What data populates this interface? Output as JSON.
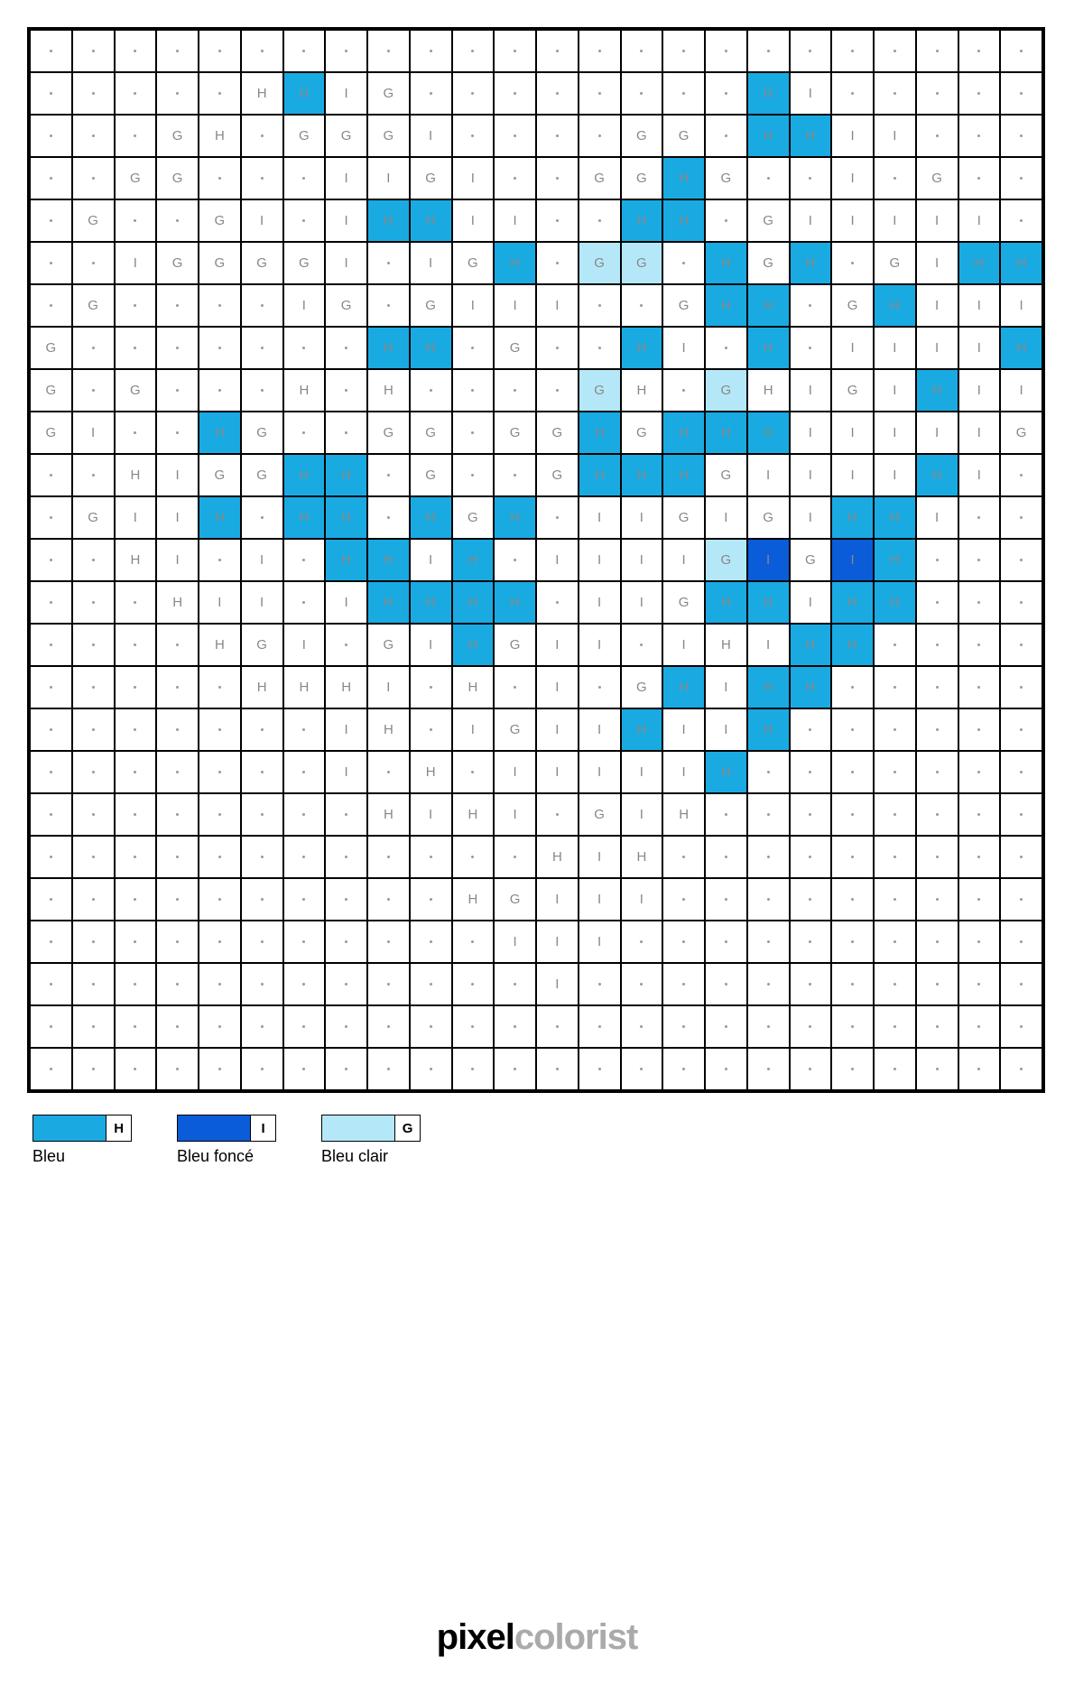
{
  "grid": {
    "cols": 24,
    "rows": 25,
    "colors": {
      "H": "#1aaae2",
      "I": "#0b5cd8",
      "G": "#b4e8f9",
      "default": "#ffffff"
    },
    "text_color": "#8b8b8b",
    "filled": {
      "1": [
        6,
        17
      ],
      "2": [
        17,
        18
      ],
      "3": [
        15
      ],
      "4": [
        8,
        9,
        14,
        15
      ],
      "5": [
        11,
        13,
        14,
        16,
        18,
        22,
        23
      ],
      "6": [
        16,
        17,
        20
      ],
      "7": [
        8,
        9,
        14,
        17,
        23
      ],
      "8": [
        13,
        16,
        21
      ],
      "9": [
        4,
        13,
        15,
        16,
        17
      ],
      "10": [
        6,
        7,
        13,
        14,
        15,
        21
      ],
      "11": [
        4,
        6,
        7,
        9,
        11,
        19,
        20
      ],
      "12": [
        7,
        8,
        10,
        16,
        17,
        19,
        20
      ],
      "13": [
        8,
        9,
        10,
        11,
        16,
        17,
        19,
        20
      ],
      "14": [
        10,
        18,
        19
      ],
      "15": [
        15,
        17,
        18
      ],
      "16": [
        14,
        17
      ],
      "17": [
        16
      ]
    },
    "cells": [
      [
        ".",
        ".",
        ".",
        ".",
        ".",
        ".",
        ".",
        ".",
        ".",
        ".",
        ".",
        ".",
        ".",
        ".",
        ".",
        ".",
        ".",
        ".",
        ".",
        ".",
        ".",
        ".",
        ".",
        "."
      ],
      [
        ".",
        ".",
        ".",
        ".",
        ".",
        "H",
        "H",
        "I",
        "G",
        ".",
        ".",
        ".",
        ".",
        ".",
        ".",
        ".",
        ".",
        "H",
        "I",
        ".",
        ".",
        ".",
        ".",
        "."
      ],
      [
        ".",
        ".",
        ".",
        "G",
        "H",
        ".",
        "G",
        "G",
        "G",
        "I",
        ".",
        ".",
        ".",
        ".",
        "G",
        "G",
        ".",
        "H",
        "H",
        "I",
        "I",
        ".",
        ".",
        "."
      ],
      [
        ".",
        ".",
        "G",
        "G",
        ".",
        ".",
        ".",
        "I",
        "I",
        "G",
        "I",
        ".",
        ".",
        "G",
        "G",
        "H",
        "G",
        ".",
        ".",
        "I",
        ".",
        "G",
        ".",
        "."
      ],
      [
        ".",
        "G",
        ".",
        ".",
        "G",
        "I",
        ".",
        "I",
        "H",
        "H",
        "I",
        "I",
        ".",
        ".",
        "H",
        "H",
        ".",
        "G",
        "I",
        "I",
        "I",
        "I",
        "I",
        "."
      ],
      [
        ".",
        ".",
        "I",
        "G",
        "G",
        "G",
        "G",
        "I",
        ".",
        "I",
        "G",
        "H",
        ".",
        "G",
        "G",
        ".",
        "H",
        "G",
        "H",
        ".",
        "G",
        "I",
        "H",
        "H"
      ],
      [
        ".",
        "G",
        ".",
        ".",
        ".",
        ".",
        "I",
        "G",
        ".",
        "G",
        "I",
        "I",
        "I",
        ".",
        ".",
        "G",
        "H",
        "H",
        ".",
        "G",
        "H",
        "I",
        "I",
        "I"
      ],
      [
        "G",
        ".",
        ".",
        ".",
        ".",
        ".",
        ".",
        ".",
        "H",
        "H",
        ".",
        "G",
        ".",
        ".",
        "H",
        "I",
        ".",
        "H",
        ".",
        "I",
        "I",
        "I",
        "I",
        "H"
      ],
      [
        "G",
        ".",
        "G",
        ".",
        ".",
        ".",
        "H",
        ".",
        "H",
        ".",
        ".",
        ".",
        ".",
        "G",
        "H",
        ".",
        "G",
        "H",
        "I",
        "G",
        "I",
        "H",
        "I",
        "I"
      ],
      [
        "G",
        "I",
        ".",
        ".",
        "H",
        "G",
        ".",
        ".",
        "G",
        "G",
        ".",
        "G",
        "G",
        "H",
        "G",
        "H",
        "H",
        "H",
        "I",
        "I",
        "I",
        "I",
        "I",
        "G"
      ],
      [
        ".",
        ".",
        "H",
        "I",
        "G",
        "G",
        "H",
        "H",
        ".",
        "G",
        ".",
        ".",
        "G",
        "H",
        "H",
        "H",
        "G",
        "I",
        "I",
        "I",
        "I",
        "H",
        "I",
        "."
      ],
      [
        ".",
        "G",
        "I",
        "I",
        "H",
        ".",
        "H",
        "H",
        ".",
        "H",
        "G",
        "H",
        ".",
        "I",
        "I",
        "G",
        "I",
        "G",
        "I",
        "H",
        "H",
        "I",
        ".",
        "."
      ],
      [
        ".",
        ".",
        "H",
        "I",
        ".",
        "I",
        ".",
        "H",
        "H",
        "I",
        "H",
        ".",
        "I",
        "I",
        "I",
        "I",
        "G",
        "I",
        "G",
        "I",
        "H",
        ".",
        ".",
        "."
      ],
      [
        ".",
        ".",
        ".",
        "H",
        "I",
        "I",
        ".",
        "I",
        "H",
        "H",
        "H",
        "H",
        ".",
        "I",
        "I",
        "G",
        "H",
        "H",
        "I",
        "H",
        "H",
        ".",
        ".",
        "."
      ],
      [
        ".",
        ".",
        ".",
        ".",
        "H",
        "G",
        "I",
        ".",
        "G",
        "I",
        "H",
        "G",
        "I",
        "I",
        ".",
        "I",
        "H",
        "I",
        "H",
        "H",
        ".",
        ".",
        ".",
        "."
      ],
      [
        ".",
        ".",
        ".",
        ".",
        ".",
        "H",
        "H",
        "H",
        "I",
        ".",
        "H",
        ".",
        "I",
        ".",
        "G",
        "H",
        "I",
        "H",
        "H",
        ".",
        ".",
        ".",
        ".",
        "."
      ],
      [
        ".",
        ".",
        ".",
        ".",
        ".",
        ".",
        ".",
        "I",
        "H",
        ".",
        "I",
        "G",
        "I",
        "I",
        "H",
        "I",
        "I",
        "H",
        ".",
        ".",
        ".",
        ".",
        ".",
        "."
      ],
      [
        ".",
        ".",
        ".",
        ".",
        ".",
        ".",
        ".",
        "I",
        ".",
        "H",
        ".",
        "I",
        "I",
        "I",
        "I",
        "I",
        "H",
        ".",
        ".",
        ".",
        ".",
        ".",
        ".",
        "."
      ],
      [
        ".",
        ".",
        ".",
        ".",
        ".",
        ".",
        ".",
        ".",
        "H",
        "I",
        "H",
        "I",
        ".",
        "G",
        "I",
        "H",
        ".",
        ".",
        ".",
        ".",
        ".",
        ".",
        ".",
        "."
      ],
      [
        ".",
        ".",
        ".",
        ".",
        ".",
        ".",
        ".",
        ".",
        ".",
        ".",
        ".",
        ".",
        "H",
        "I",
        "H",
        ".",
        ".",
        ".",
        ".",
        ".",
        ".",
        ".",
        ".",
        "."
      ],
      [
        ".",
        ".",
        ".",
        ".",
        ".",
        ".",
        ".",
        ".",
        ".",
        ".",
        "H",
        "G",
        "I",
        "I",
        "I",
        ".",
        ".",
        ".",
        ".",
        ".",
        ".",
        ".",
        ".",
        "."
      ],
      [
        ".",
        ".",
        ".",
        ".",
        ".",
        ".",
        ".",
        ".",
        ".",
        ".",
        ".",
        "I",
        "I",
        "I",
        ".",
        ".",
        ".",
        ".",
        ".",
        ".",
        ".",
        ".",
        ".",
        "."
      ],
      [
        ".",
        ".",
        ".",
        ".",
        ".",
        ".",
        ".",
        ".",
        ".",
        ".",
        ".",
        ".",
        "I",
        ".",
        ".",
        ".",
        ".",
        ".",
        ".",
        ".",
        ".",
        ".",
        ".",
        "."
      ],
      [
        ".",
        ".",
        ".",
        ".",
        ".",
        ".",
        ".",
        ".",
        ".",
        ".",
        ".",
        ".",
        ".",
        ".",
        ".",
        ".",
        ".",
        ".",
        ".",
        ".",
        ".",
        ".",
        ".",
        "."
      ],
      [
        ".",
        ".",
        ".",
        ".",
        ".",
        ".",
        ".",
        ".",
        ".",
        ".",
        ".",
        ".",
        ".",
        ".",
        ".",
        ".",
        ".",
        ".",
        ".",
        ".",
        ".",
        ".",
        ".",
        "."
      ]
    ]
  },
  "legend": [
    {
      "letter": "H",
      "label": "Bleu",
      "color": "#1aaae2"
    },
    {
      "letter": "I",
      "label": "Bleu foncé",
      "color": "#0b5cd8"
    },
    {
      "letter": "G",
      "label": "Bleu clair",
      "color": "#b4e8f9"
    }
  ],
  "logo": {
    "part1": "pixel",
    "part2": "colorist"
  }
}
